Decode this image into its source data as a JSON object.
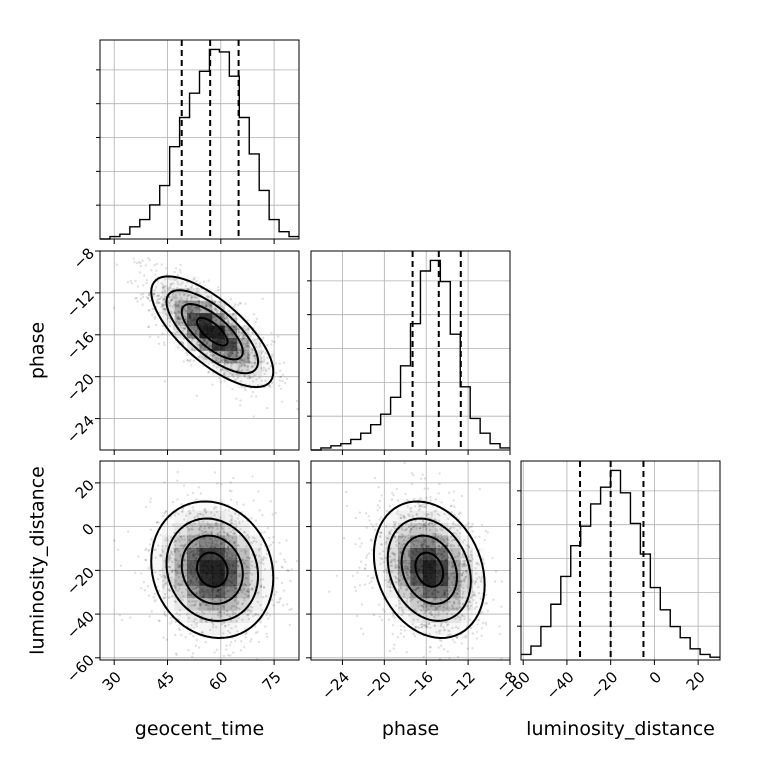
{
  "chart_data": {
    "type": "corner",
    "parameters": [
      "geocent_time",
      "phase",
      "luminosity_distance"
    ],
    "axis_labels": {
      "geocent_time": "geocent_time",
      "phase": "phase",
      "luminosity_distance": "luminosity_distance"
    },
    "ranges": {
      "geocent_time": [
        26,
        82
      ],
      "phase": [
        -27,
        -8
      ],
      "luminosity_distance": [
        -61,
        30
      ]
    },
    "ticks": {
      "geocent_time": [
        30,
        45,
        60,
        75
      ],
      "phase": [
        -24,
        -20,
        -16,
        -12,
        -8
      ],
      "luminosity_distance": [
        -60,
        -40,
        -20,
        0,
        20
      ]
    },
    "tick_labels": {
      "geocent_time": [
        "30",
        "45",
        "60",
        "75"
      ],
      "phase": [
        "−24",
        "−20",
        "−16",
        "−12",
        "−8"
      ],
      "luminosity_distance": [
        "−60",
        "−40",
        "−20",
        "0",
        "20"
      ]
    },
    "quantiles": {
      "geocent_time": [
        49,
        57,
        65
      ],
      "phase": [
        -17.3,
        -14.8,
        -12.7
      ],
      "luminosity_distance": [
        -34,
        -20,
        -5
      ]
    },
    "histograms": {
      "geocent_time": {
        "bin_edges": [
          26,
          28.8,
          31.6,
          34.4,
          37.2,
          40,
          42.8,
          45.6,
          48.4,
          51.2,
          54,
          56.8,
          59.6,
          62.4,
          65.2,
          68,
          70.8,
          73.6,
          76.4,
          79.2,
          82
        ],
        "counts": [
          0,
          1,
          2,
          5,
          8,
          14,
          22,
          38,
          50,
          60,
          69,
          78,
          77,
          67,
          50,
          35,
          20,
          8,
          3,
          1
        ]
      },
      "phase": {
        "bin_edges": [
          -27,
          -26.05,
          -25.1,
          -24.15,
          -23.2,
          -22.25,
          -21.3,
          -20.35,
          -19.4,
          -18.45,
          -17.5,
          -16.55,
          -15.6,
          -14.65,
          -13.7,
          -12.75,
          -11.8,
          -10.85,
          -9.9,
          -8.95,
          -8
        ],
        "counts": [
          0,
          1,
          2,
          3,
          5,
          8,
          12,
          17,
          25,
          40,
          60,
          85,
          90,
          80,
          55,
          30,
          15,
          8,
          3,
          1
        ]
      },
      "luminosity_distance": {
        "bin_edges": [
          -61,
          -56.45,
          -51.9,
          -47.35,
          -42.8,
          -38.25,
          -33.7,
          -29.15,
          -24.6,
          -20.05,
          -15.5,
          -10.95,
          -6.4,
          -1.85,
          2.7,
          7.25,
          11.8,
          16.35,
          20.9,
          25.45,
          30
        ],
        "counts": [
          2,
          5,
          12,
          20,
          30,
          41,
          48,
          56,
          62,
          68,
          60,
          49,
          38,
          26,
          18,
          12,
          8,
          4,
          2,
          1
        ]
      }
    },
    "grid": true,
    "contour_levels": 3
  }
}
